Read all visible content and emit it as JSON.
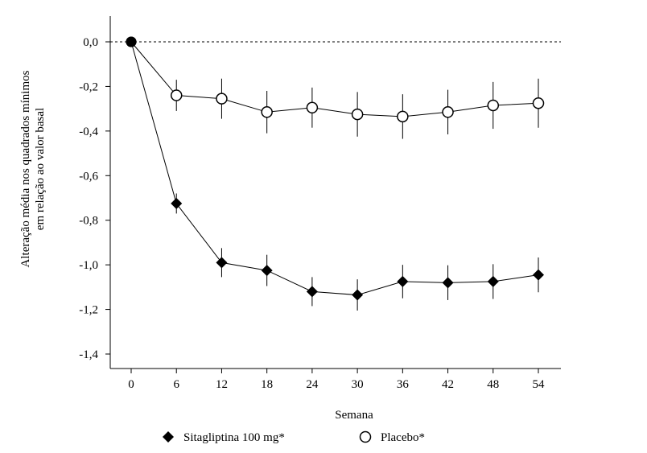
{
  "chart_data": {
    "type": "line",
    "title": "",
    "xlabel": "Semana",
    "ylabel": [
      "Alteração média nos quadrados mínimos",
      "em relação ao valor basal"
    ],
    "x": [
      0,
      6,
      12,
      18,
      24,
      30,
      36,
      42,
      48,
      54
    ],
    "x_ticks": [
      "0",
      "6",
      "12",
      "18",
      "24",
      "30",
      "36",
      "42",
      "48",
      "54"
    ],
    "y_ticks": [
      "0,0",
      "-0,2",
      "-0,4",
      "-0,6",
      "-0,8",
      "-1,0",
      "-1,2",
      "-1,4"
    ],
    "y_tick_values": [
      0,
      -0.2,
      -0.4,
      -0.6,
      -0.8,
      -1.0,
      -1.2,
      -1.4
    ],
    "ylim": [
      -1.4,
      0.0
    ],
    "xlim": [
      -3,
      57
    ],
    "reference_line": 0,
    "grid": false,
    "legend_position": "bottom",
    "series": [
      {
        "name": "Sitagliptina 100 mg*",
        "marker": "diamond-filled",
        "values": [
          0,
          -0.725,
          -0.99,
          -1.025,
          -1.12,
          -1.135,
          -1.075,
          -1.08,
          -1.075,
          -1.045
        ],
        "error": [
          0,
          0.045,
          0.065,
          0.07,
          0.065,
          0.07,
          0.075,
          0.078,
          0.078,
          0.078
        ]
      },
      {
        "name": "Placebo*",
        "marker": "circle-open",
        "values": [
          0,
          -0.24,
          -0.255,
          -0.315,
          -0.295,
          -0.325,
          -0.335,
          -0.315,
          -0.285,
          -0.275
        ],
        "error": [
          0,
          0.07,
          0.09,
          0.095,
          0.09,
          0.1,
          0.1,
          0.1,
          0.105,
          0.11
        ]
      }
    ]
  }
}
